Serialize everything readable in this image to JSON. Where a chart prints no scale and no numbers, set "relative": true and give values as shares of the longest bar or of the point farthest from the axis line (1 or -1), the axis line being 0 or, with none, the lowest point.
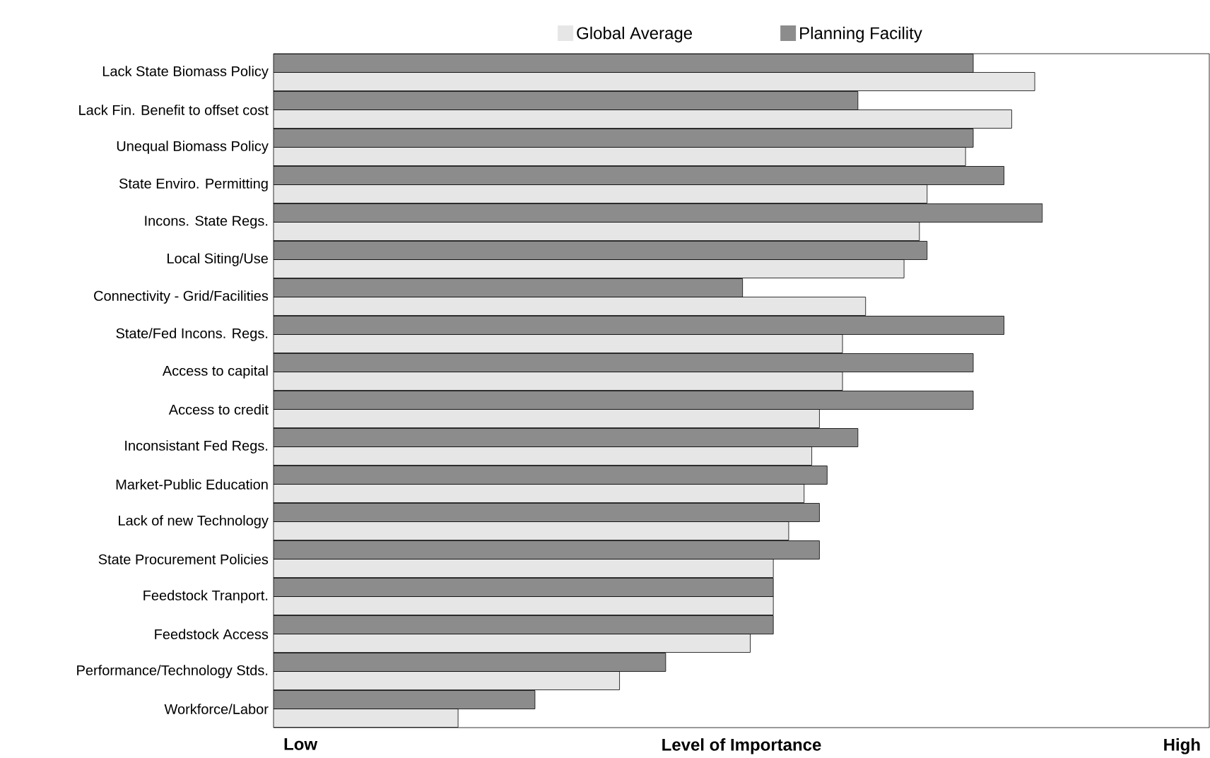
{
  "chart_data": {
    "type": "bar",
    "orientation": "horizontal",
    "relative": true,
    "xlabel": "Level of Importance",
    "annotations": [
      "Low",
      "High"
    ],
    "categories": [
      "Lack State Biomass Policy",
      "Lack Fin. Benefit to offset cost",
      "Unequal Biomass Policy",
      "State Enviro. Permitting",
      "Incons. State Regs.",
      "Local Siting/Use",
      "Connectivity - Grid/Facilities",
      "State/Fed Incons. Regs.",
      "Access to capital",
      "Access to credit",
      "Inconsistant Fed Regs.",
      "Market-Public Education",
      "Lack of new Technology",
      "State Procurement Policies",
      "Feedstock Tranport.",
      "Feedstock Access",
      "Performance/Technology Stds.",
      "Workforce/Labor"
    ],
    "series": [
      {
        "name": "Global Average",
        "color": "#e6e6e6",
        "values": [
          0.99,
          0.96,
          0.9,
          0.85,
          0.84,
          0.82,
          0.77,
          0.74,
          0.74,
          0.71,
          0.7,
          0.69,
          0.67,
          0.65,
          0.65,
          0.62,
          0.45,
          0.24
        ]
      },
      {
        "name": "Planning Facility",
        "color": "#8c8c8c",
        "values": [
          0.91,
          0.76,
          0.91,
          0.95,
          1,
          0.85,
          0.61,
          0.95,
          0.91,
          0.91,
          0.76,
          0.72,
          0.71,
          0.71,
          0.65,
          0.65,
          0.51,
          0.34
        ]
      }
    ],
    "legend": "top"
  }
}
